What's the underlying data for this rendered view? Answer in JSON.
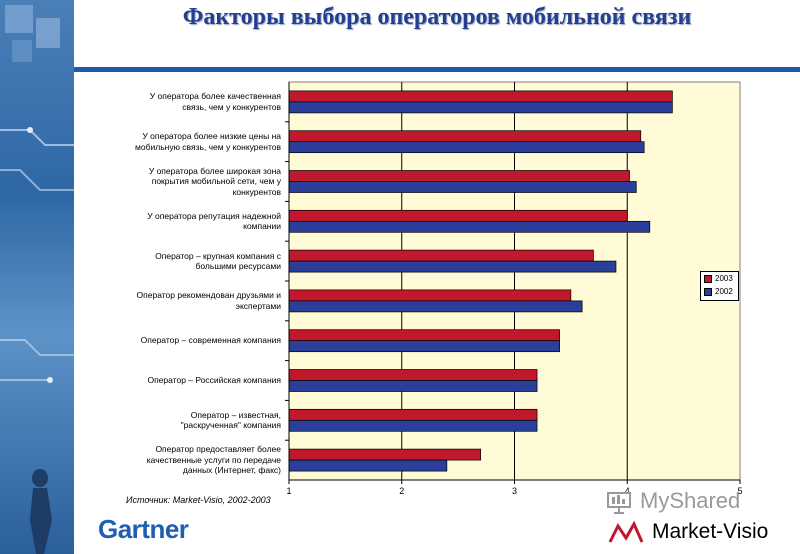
{
  "title": "Факторы выбора операторов мобильной связи",
  "source": "Источник: Market-Visio, 2002-2003",
  "branding": {
    "gartner": "Gartner",
    "market_visio": "Market-Visio",
    "watermark": "MyShared"
  },
  "colors": {
    "series_2003": "#c0182c",
    "series_2002": "#2b3f9a",
    "plot_bg": "#fffbd6",
    "accent": "#1f5aa8"
  },
  "chart_data": {
    "type": "bar",
    "orientation": "horizontal",
    "categories": [
      "У оператора более качественная связь, чем у конкурентов",
      "У оператора более низкие цены на мобильную связь, чем у конкурентов",
      "У оператора более широкая зона покрытия мобильной сети, чем у конкурентов",
      "У оператора репутация надежной компании",
      "Оператор – крупная компания с большими ресурсами",
      "Оператор рекомендован друзьями и экспертами",
      "Оператор – современная компания",
      "Оператор – Российская компания",
      "Оператор – известная, \"раскрученная\" компания",
      "Оператор предоставляет более качественные услуги по передаче данных (Интернет, факс)"
    ],
    "series": [
      {
        "name": "2003",
        "values": [
          4.4,
          4.12,
          4.02,
          4.0,
          3.7,
          3.5,
          3.4,
          3.2,
          3.2,
          2.7
        ]
      },
      {
        "name": "2002",
        "values": [
          4.4,
          4.15,
          4.08,
          4.2,
          3.9,
          3.6,
          3.4,
          3.2,
          3.2,
          2.4
        ]
      }
    ],
    "xlim": [
      1,
      5
    ],
    "ticks": [
      "1",
      "2",
      "3",
      "4",
      "5"
    ],
    "grid": "vertical",
    "legend": "right"
  }
}
